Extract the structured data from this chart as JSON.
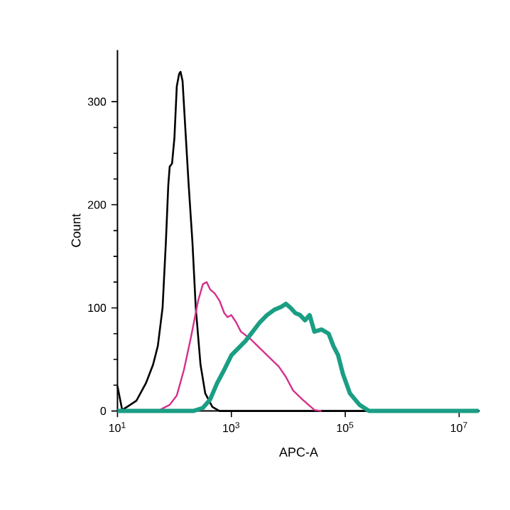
{
  "chart_data": {
    "type": "line",
    "xlabel": "APC-A",
    "ylabel": "Count",
    "log": "x",
    "xlim": [
      10,
      23000000
    ],
    "ylim": [
      0,
      350
    ],
    "xticks": [
      {
        "value": 10,
        "label": "10$^{1}$"
      },
      {
        "value": 1000,
        "label": "10$^{3}$"
      },
      {
        "value": 100000,
        "label": "10$^{5}$"
      },
      {
        "value": 10000000,
        "label": "10$^{7}$"
      }
    ],
    "yticks": [
      0,
      100,
      200,
      300
    ],
    "marker": "none",
    "line_style": "solid",
    "series": [
      {
        "color": "#000000",
        "x": [
          10,
          12.1,
          14.7,
          21.5,
          31.6,
          42.2,
          51.1,
          61.9,
          70.8,
          78.0,
          82.6,
          90.8,
          100,
          110,
          121,
          128,
          139,
          152,
          178,
          207,
          237,
          287,
          348,
          464,
          619,
          22000000
        ],
        "values": [
          24,
          1,
          4,
          10,
          27,
          45,
          63,
          100,
          164,
          219,
          237,
          240,
          265,
          315,
          327,
          329,
          320,
          283,
          219,
          164,
          100,
          45,
          17,
          4,
          0,
          0
        ]
      },
      {
        "color": "#d62f8c",
        "x": [
          51.1,
          82.6,
          110,
          147,
          196,
          261,
          316,
          369,
          422,
          511,
          619,
          750,
          858,
          1000,
          1210,
          1470,
          2150,
          3160,
          4640,
          6810,
          9080,
          12100,
          17800,
          28700,
          38300
        ],
        "values": [
          0,
          6,
          15,
          40,
          72,
          107,
          123,
          125,
          118,
          114,
          107,
          95,
          91,
          93,
          86,
          77,
          70,
          61,
          52,
          43,
          33,
          20,
          11,
          1,
          0
        ]
      },
      {
        "color": "#1a9e84",
        "x": [
          10,
          215,
          316,
          422,
          562,
          750,
          1000,
          1330,
          1780,
          2370,
          3160,
          4220,
          5620,
          7500,
          9080,
          11000,
          13300,
          16100,
          19600,
          23700,
          28700,
          38300,
          51100,
          61900,
          75000,
          90800,
          121000,
          178000,
          261000,
          22000000
        ],
        "values": [
          0,
          0,
          3,
          11,
          27,
          40,
          54,
          61,
          68,
          77,
          86,
          93,
          98,
          101,
          104,
          100,
          95,
          93,
          88,
          93,
          77,
          79,
          75,
          63,
          54,
          36,
          17,
          6,
          0,
          0
        ]
      }
    ]
  }
}
